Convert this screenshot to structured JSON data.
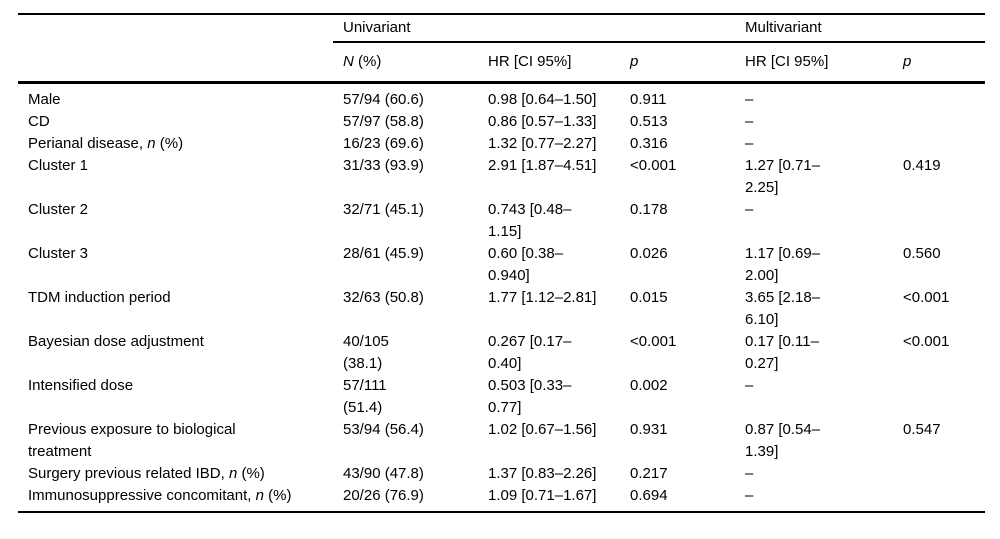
{
  "table": {
    "spanners": {
      "univariant": "Univariant",
      "multivariant": "Multivariant"
    },
    "columns": {
      "n_italic": "N",
      "n_rest": " (%)",
      "hr_uni": "HR [CI 95%]",
      "p_uni": "p",
      "hr_multi": "HR [CI 95%]",
      "p_multi": "p"
    },
    "rows": [
      {
        "label": "Male",
        "n": "57/94 (60.6)",
        "uni_hr": "0.98 [0.64–1.50]",
        "uni_p": "0.911",
        "multi_hr": "–",
        "multi_p": ""
      },
      {
        "label": "CD",
        "n": "57/97 (58.8)",
        "uni_hr": "0.86 [0.57–1.33]",
        "uni_p": "0.513",
        "multi_hr": "–",
        "multi_p": ""
      },
      {
        "label": "Perianal disease, ",
        "label_italic": "n",
        "label_after": " (%)",
        "n": "16/23 (69.6)",
        "uni_hr": "1.32 [0.77–2.27]",
        "uni_p": "0.316",
        "multi_hr": "–",
        "multi_p": ""
      },
      {
        "label": "Cluster 1",
        "n": "31/33 (93.9)",
        "uni_hr": "2.91 [1.87–4.51]",
        "uni_p": "<0.001",
        "multi_hr": "1.27 [0.71–\n2.25]",
        "multi_p": "0.419"
      },
      {
        "label": "Cluster 2",
        "n": "32/71 (45.1)",
        "uni_hr": "0.743 [0.48–\n1.15]",
        "uni_p": "0.178",
        "multi_hr": "–",
        "multi_p": ""
      },
      {
        "label": "Cluster 3",
        "n": "28/61 (45.9)",
        "uni_hr": "0.60 [0.38–\n0.940]",
        "uni_p": "0.026",
        "multi_hr": "1.17 [0.69–\n2.00]",
        "multi_p": "0.560"
      },
      {
        "label": "TDM induction period",
        "n": "32/63 (50.8)",
        "uni_hr": "1.77 [1.12–2.81]",
        "uni_p": "0.015",
        "multi_hr": "3.65 [2.18–\n6.10]",
        "multi_p": "<0.001"
      },
      {
        "label": "Bayesian dose adjustment",
        "n": "40/105\n(38.1)",
        "uni_hr": "0.267 [0.17–\n0.40]",
        "uni_p": "<0.001",
        "multi_hr": "0.17 [0.11–\n0.27]",
        "multi_p": "<0.001"
      },
      {
        "label": "Intensified dose",
        "n": "57/111\n(51.4)",
        "uni_hr": "0.503 [0.33–\n0.77]",
        "uni_p": "0.002",
        "multi_hr": "–",
        "multi_p": ""
      },
      {
        "label": "Previous exposure to biological\ntreatment",
        "n": "53/94 (56.4)",
        "uni_hr": "1.02 [0.67–1.56]",
        "uni_p": "0.931",
        "multi_hr": "0.87 [0.54–\n1.39]",
        "multi_p": "0.547"
      },
      {
        "label": "Surgery previous related IBD, ",
        "label_italic": "n",
        "label_after": " (%)",
        "n": "43/90 (47.8)",
        "uni_hr": "1.37 [0.83–2.26]",
        "uni_p": "0.217",
        "multi_hr": "–",
        "multi_p": ""
      },
      {
        "label": "Immunosuppressive concomitant, ",
        "label_italic": "n",
        "label_after": " (%)",
        "n": "20/26 (76.9)",
        "uni_hr": "1.09 [0.71–1.67]",
        "uni_p": "0.694",
        "multi_hr": "–",
        "multi_p": ""
      }
    ]
  }
}
